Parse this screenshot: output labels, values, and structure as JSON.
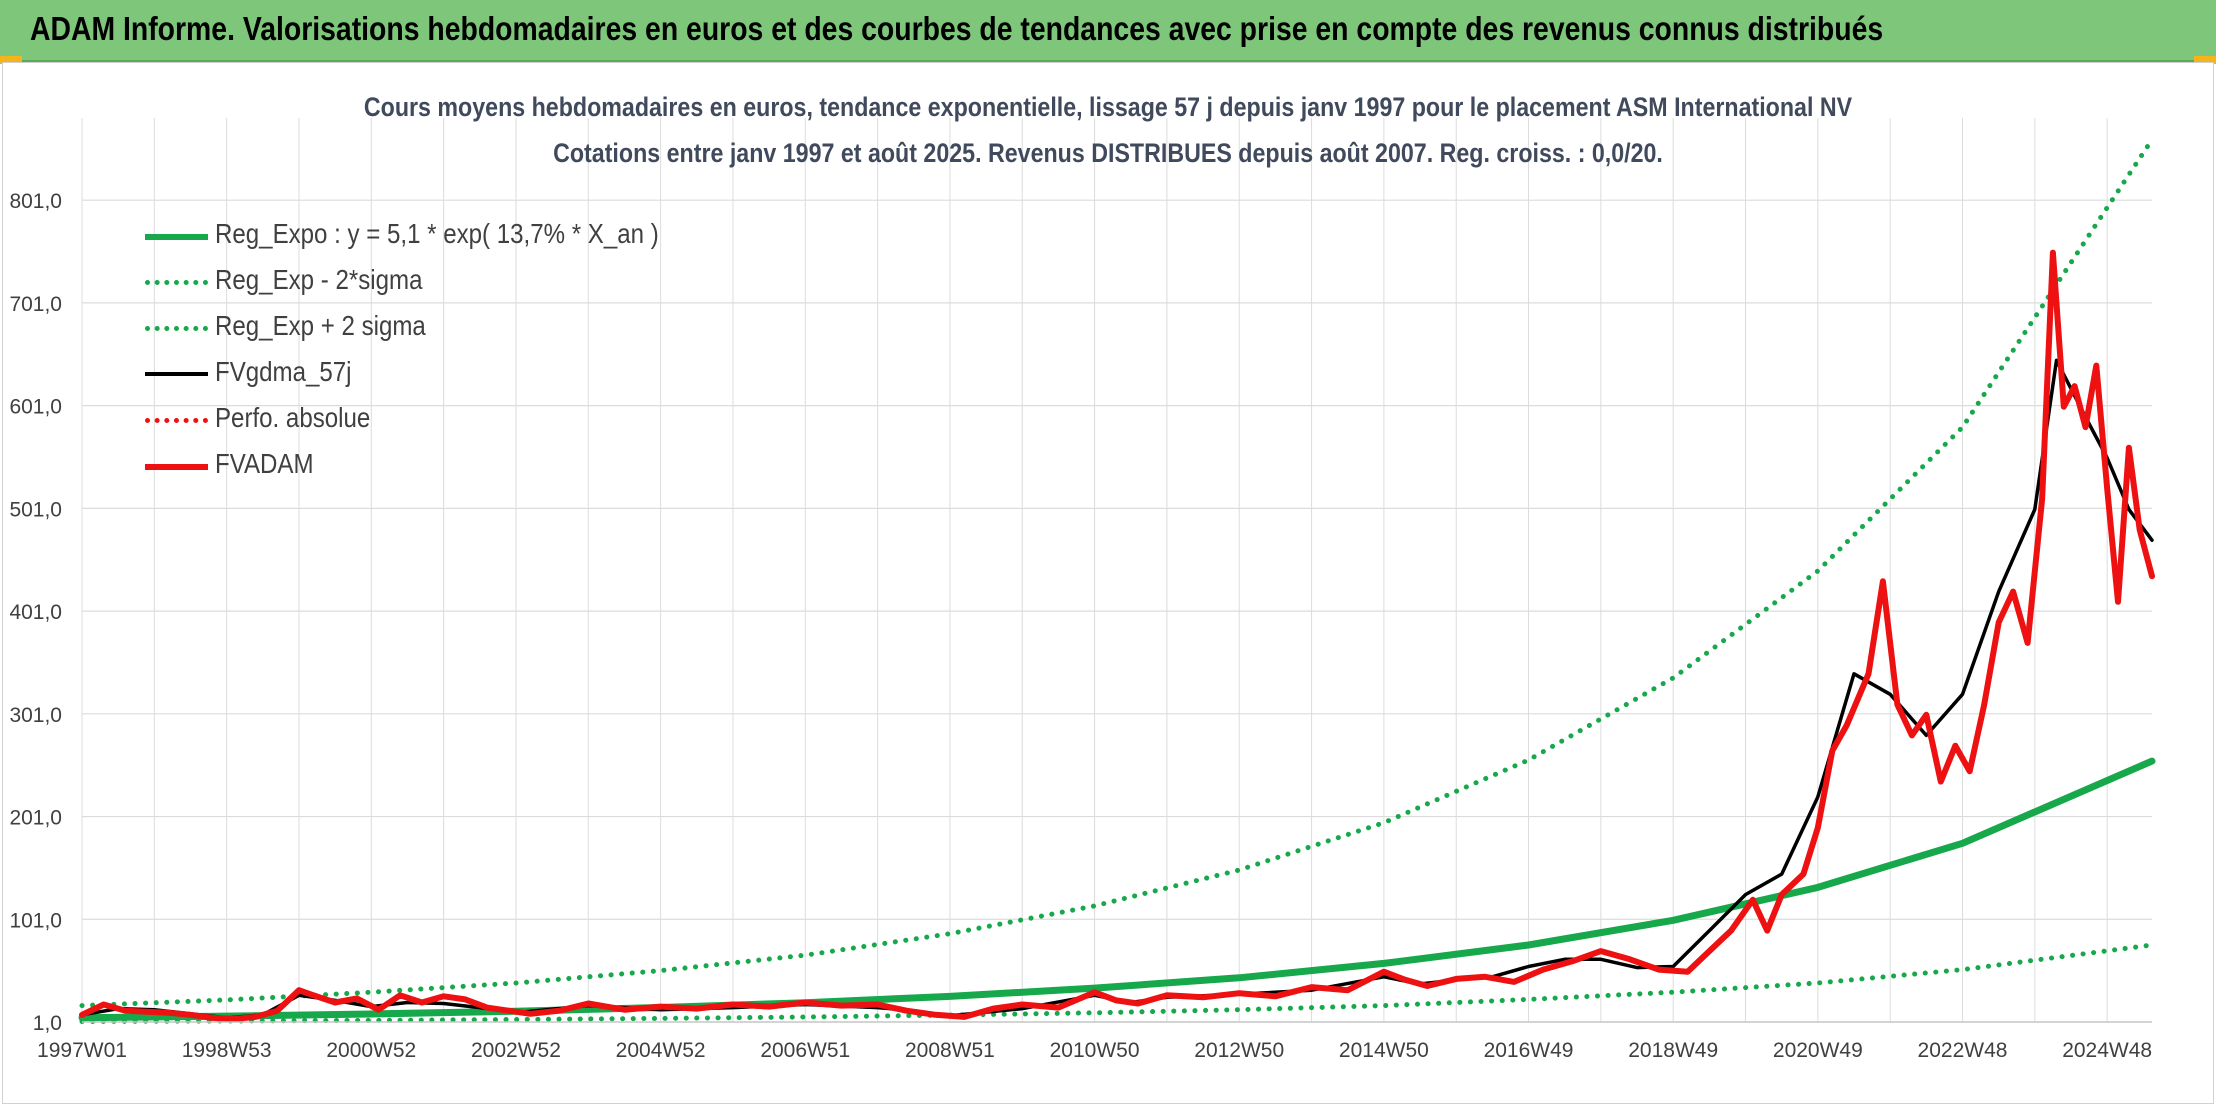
{
  "banner": {
    "title": "ADAM Informe. Valorisations hebdomadaires en euros et des courbes de tendances avec prise en compte des revenus connus distribués"
  },
  "colors": {
    "banner": "#7dc67a",
    "reg_green": "#16a84a",
    "black": "#000000",
    "red": "#ee1111",
    "grid": "#dcdcdc",
    "text": "#404040"
  },
  "chart_data": {
    "type": "line",
    "title": "Cours moyens hebdomadaires en euros, tendance exponentielle, lissage 57 j depuis janv 1997 pour le placement ASM International NV",
    "subtitle": "Cotations entre janv 1997 et août 2025. Revenus DISTRIBUES depuis août 2007. Reg. croiss. : 0,0/20.",
    "xlabel": "",
    "ylabel": "",
    "x_start": 1997.0,
    "x_end": 2025.62,
    "ylim": [
      1.0,
      881.0
    ],
    "y_ticks": [
      "1,0",
      "101,0",
      "201,0",
      "301,0",
      "401,0",
      "501,0",
      "601,0",
      "701,0",
      "801,0"
    ],
    "x_ticks": [
      {
        "label": "1997W01",
        "x": 1997.0
      },
      {
        "label": "1998W53",
        "x": 1999.0
      },
      {
        "label": "2000W52",
        "x": 2001.0
      },
      {
        "label": "2002W52",
        "x": 2003.0
      },
      {
        "label": "2004W52",
        "x": 2005.0
      },
      {
        "label": "2006W51",
        "x": 2007.0
      },
      {
        "label": "2008W51",
        "x": 2009.0
      },
      {
        "label": "2010W50",
        "x": 2011.0
      },
      {
        "label": "2012W50",
        "x": 2013.0
      },
      {
        "label": "2014W50",
        "x": 2015.0
      },
      {
        "label": "2016W49",
        "x": 2017.0
      },
      {
        "label": "2018W49",
        "x": 2019.0
      },
      {
        "label": "2020W49",
        "x": 2021.0
      },
      {
        "label": "2022W48",
        "x": 2023.0
      },
      {
        "label": "2024W48",
        "x": 2025.0
      }
    ],
    "gridlines": true,
    "legend_position": "top-left",
    "series": [
      {
        "name": "Reg_Expo : y = 5,1 * exp( 13,7% *  X_an )",
        "style": "solid-thick",
        "color": "#16a84a",
        "x": [
          1997.0,
          1999.0,
          2001.0,
          2003.0,
          2005.0,
          2007.0,
          2009.0,
          2011.0,
          2013.0,
          2015.0,
          2017.0,
          2019.0,
          2021.0,
          2023.0,
          2025.62
        ],
        "y": [
          5.1,
          6.7,
          8.8,
          11.5,
          15.1,
          19.8,
          25.9,
          34,
          44,
          58,
          76,
          100,
          132,
          175,
          255
        ]
      },
      {
        "name": "Reg_Exp - 2*sigma",
        "style": "dotted",
        "color": "#16a84a",
        "x": [
          1997.0,
          1999.0,
          2001.0,
          2003.0,
          2005.0,
          2007.0,
          2009.0,
          2011.0,
          2013.0,
          2015.0,
          2017.0,
          2019.0,
          2021.0,
          2023.0,
          2025.62
        ],
        "y": [
          1.5,
          2.0,
          2.6,
          3.4,
          4.5,
          5.9,
          7.7,
          10,
          13,
          17,
          23,
          30,
          39,
          52,
          76
        ]
      },
      {
        "name": "Reg_Exp + 2 sigma",
        "style": "dotted",
        "color": "#16a84a",
        "x": [
          1997.0,
          1999.0,
          2001.0,
          2003.0,
          2005.0,
          2007.0,
          2009.0,
          2011.0,
          2013.0,
          2015.0,
          2017.0,
          2019.0,
          2021.0,
          2023.0,
          2025.62
        ],
        "y": [
          17,
          22.5,
          30,
          39,
          51,
          66,
          87,
          114,
          149,
          195,
          256,
          336,
          440,
          580,
          860
        ]
      },
      {
        "name": "FVgdma_57j",
        "style": "solid",
        "color": "#000000",
        "x": [
          1997.0,
          1997.5,
          1998.0,
          1998.5,
          1999.0,
          1999.5,
          2000.0,
          2000.5,
          2001.0,
          2001.5,
          2002.0,
          2002.5,
          2003.0,
          2004.0,
          2005.0,
          2006.0,
          2007.0,
          2008.0,
          2008.5,
          2009.0,
          2010.0,
          2011.0,
          2011.5,
          2012.0,
          2013.0,
          2014.0,
          2015.0,
          2015.5,
          2016.0,
          2016.5,
          2017.0,
          2017.5,
          2018.0,
          2018.5,
          2019.0,
          2019.5,
          2020.0,
          2020.5,
          2021.0,
          2021.5,
          2022.0,
          2022.5,
          2023.0,
          2023.5,
          2024.0,
          2024.3,
          2024.7,
          2025.0,
          2025.3,
          2025.62
        ],
        "y": [
          8,
          14,
          13,
          9,
          5,
          8,
          27,
          22,
          16,
          20,
          19,
          15,
          10,
          17,
          13,
          15,
          18,
          15,
          12,
          7,
          14,
          27,
          20,
          25,
          28,
          32,
          45,
          38,
          42,
          45,
          55,
          62,
          62,
          54,
          55,
          90,
          125,
          145,
          220,
          340,
          320,
          280,
          320,
          420,
          500,
          645,
          590,
          550,
          500,
          470
        ]
      },
      {
        "name": "Perfo. absolue",
        "style": "dotted",
        "color": "#ee1111",
        "x": [],
        "y": []
      },
      {
        "name": "FVADAM",
        "style": "solid-thick",
        "color": "#ee1111",
        "x": [
          1997.0,
          1997.3,
          1997.6,
          1997.9,
          1998.2,
          1998.5,
          1998.8,
          1999.1,
          1999.4,
          1999.7,
          2000.0,
          2000.2,
          2000.5,
          2000.8,
          2001.1,
          2001.4,
          2001.7,
          2002.0,
          2002.3,
          2002.6,
          2002.9,
          2003.2,
          2003.6,
          2004.0,
          2004.5,
          2005.0,
          2005.5,
          2006.0,
          2006.5,
          2007.0,
          2007.5,
          2008.0,
          2008.4,
          2008.8,
          2009.2,
          2009.6,
          2010.0,
          2010.5,
          2011.0,
          2011.3,
          2011.6,
          2012.0,
          2012.5,
          2013.0,
          2013.5,
          2014.0,
          2014.5,
          2015.0,
          2015.3,
          2015.6,
          2016.0,
          2016.4,
          2016.8,
          2017.2,
          2017.6,
          2018.0,
          2018.4,
          2018.8,
          2019.2,
          2019.5,
          2019.8,
          2020.1,
          2020.3,
          2020.5,
          2020.8,
          2021.0,
          2021.2,
          2021.4,
          2021.7,
          2021.9,
          2022.1,
          2022.3,
          2022.5,
          2022.7,
          2022.9,
          2023.1,
          2023.3,
          2023.5,
          2023.7,
          2023.9,
          2024.1,
          2024.25,
          2024.4,
          2024.55,
          2024.7,
          2024.85,
          2025.0,
          2025.15,
          2025.3,
          2025.45,
          2025.62
        ],
        "y": [
          8,
          18,
          12,
          11,
          10,
          8,
          5,
          4,
          6,
          12,
          32,
          27,
          20,
          24,
          13,
          27,
          20,
          26,
          23,
          15,
          12,
          9,
          12,
          19,
          13,
          16,
          14,
          18,
          16,
          20,
          17,
          18,
          12,
          8,
          6,
          14,
          18,
          15,
          30,
          22,
          19,
          27,
          25,
          29,
          26,
          35,
          32,
          50,
          42,
          36,
          43,
          45,
          40,
          52,
          60,
          70,
          62,
          52,
          50,
          70,
          90,
          120,
          90,
          125,
          145,
          190,
          265,
          290,
          340,
          430,
          310,
          280,
          300,
          235,
          270,
          245,
          310,
          390,
          420,
          370,
          510,
          750,
          600,
          620,
          580,
          640,
          520,
          410,
          560,
          480,
          435
        ]
      }
    ]
  }
}
